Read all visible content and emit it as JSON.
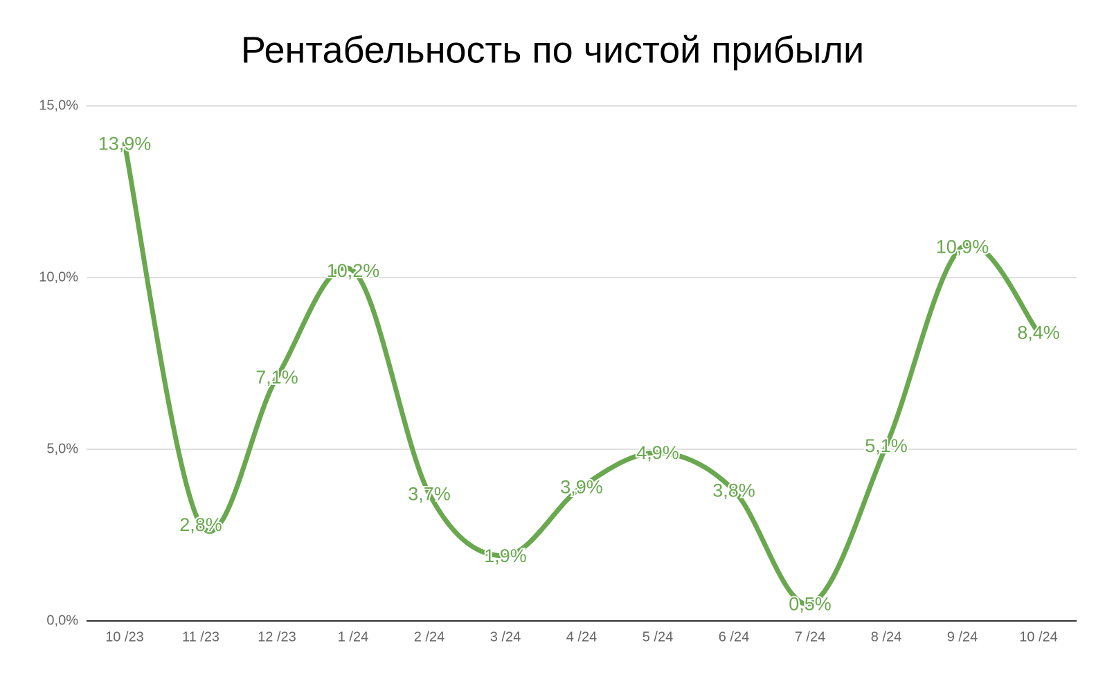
{
  "chart_data": {
    "type": "line",
    "title": "Рентабельность по чистой прибыли",
    "categories": [
      "10 /23",
      "11 /23",
      "12 /23",
      "1 /24",
      "2 /24",
      "3 /24",
      "4 /24",
      "5 /24",
      "6 /24",
      "7 /24",
      "8 /24",
      "9 /24",
      "10 /24"
    ],
    "values": [
      13.9,
      2.8,
      7.1,
      10.2,
      3.7,
      1.9,
      3.9,
      4.9,
      3.8,
      0.5,
      5.1,
      10.9,
      8.4
    ],
    "value_labels": [
      "13,9%",
      "2,8%",
      "7,1%",
      "10,2%",
      "3,7%",
      "1,9%",
      "3,9%",
      "4,9%",
      "3,8%",
      "0,5%",
      "5,1%",
      "10,9%",
      "8,4%"
    ],
    "color": "#6aa84f",
    "ylim": [
      0,
      15
    ],
    "yticks": [
      {
        "value": 0,
        "label": "0,0%"
      },
      {
        "value": 5,
        "label": "5,0%"
      },
      {
        "value": 10,
        "label": "10,0%"
      },
      {
        "value": 15,
        "label": "15,0%"
      }
    ],
    "grid": true
  }
}
